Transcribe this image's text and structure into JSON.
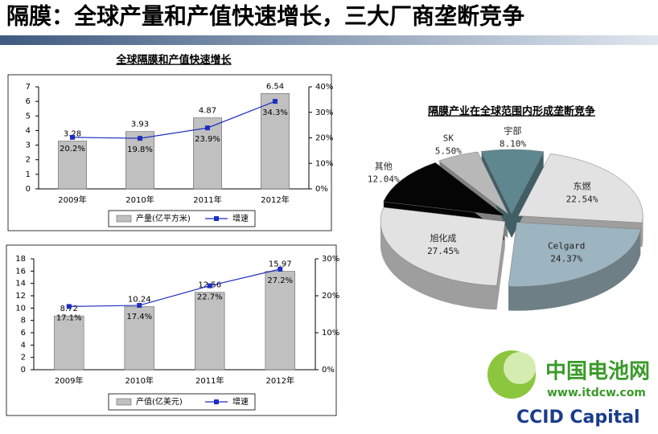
{
  "header": {
    "title": "隔膜：全球产量和产值快速增长，三大厂商垄断竞争"
  },
  "logos": [
    "中国电池网",
    "www.itdcw.com",
    "CCID Capital"
  ],
  "chart_data": [
    {
      "type": "bar",
      "title": "全球隔膜和产值快速增长",
      "categories": [
        "2009年",
        "2010年",
        "2011年",
        "2012年"
      ],
      "series": [
        {
          "name": "产量(亿平方米)",
          "color": "#c0c0c0",
          "values": [
            3.28,
            3.93,
            4.87,
            6.54
          ]
        },
        {
          "name": "增速",
          "color": "#1f2fbf",
          "type": "line",
          "axis": "y2",
          "values": [
            20.2,
            19.8,
            23.9,
            34.3
          ],
          "value_labels": [
            "20.2%",
            "19.8%",
            "23.9%",
            "34.3%"
          ]
        }
      ],
      "ylim": [
        0,
        7
      ],
      "yticks": [
        0,
        1,
        2,
        3,
        4,
        5,
        6,
        7
      ],
      "y2lim": [
        0,
        40
      ],
      "y2ticks": [
        {
          "value": 0,
          "label": "0%"
        },
        {
          "value": 10,
          "label": "10%"
        },
        {
          "value": 20,
          "label": "20%"
        },
        {
          "value": 30,
          "label": "30%"
        },
        {
          "value": 40,
          "label": "40%"
        }
      ]
    },
    {
      "type": "bar",
      "categories": [
        "2009年",
        "2010年",
        "2011年",
        "2012年"
      ],
      "series": [
        {
          "name": "产值(亿美元)",
          "color": "#c0c0c0",
          "values": [
            8.72,
            10.24,
            12.56,
            15.97
          ]
        },
        {
          "name": "增速",
          "color": "#1f2fbf",
          "type": "line",
          "axis": "y2",
          "values": [
            17.1,
            17.4,
            22.7,
            27.2
          ],
          "value_labels": [
            "17.1%",
            "17.4%",
            "22.7%",
            "27.2%"
          ]
        }
      ],
      "ylim": [
        0,
        18
      ],
      "yticks": [
        0,
        2,
        4,
        6,
        8,
        10,
        12,
        14,
        16,
        18
      ],
      "y2lim": [
        0,
        30
      ],
      "y2ticks": [
        {
          "value": 0,
          "label": "0%"
        },
        {
          "value": 10,
          "label": "10%"
        },
        {
          "value": 20,
          "label": "20%"
        },
        {
          "value": 30,
          "label": "30%"
        }
      ]
    },
    {
      "type": "pie",
      "title": "隔膜产业在全球范围内形成垄断竞争",
      "categories": [
        "东燃",
        "Celgard",
        "旭化成",
        "其他",
        "SK",
        "宇部"
      ],
      "values": [
        22.54,
        24.37,
        27.45,
        12.04,
        5.5,
        8.1
      ],
      "value_labels": [
        "22.54%",
        "24.37%",
        "27.45%",
        "12.04%",
        "5.50%",
        "8.10%"
      ],
      "colors": [
        "#e2e2e2",
        "#9db5c0",
        "#e2e2e2",
        "#050505",
        "#b8b8b8",
        "#5f8790"
      ]
    }
  ]
}
